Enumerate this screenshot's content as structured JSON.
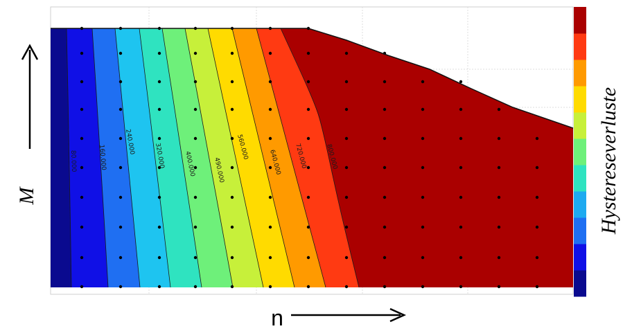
{
  "chart_data": {
    "type": "contour",
    "xlabel": "n",
    "ylabel": "M",
    "colorbar_label": "Hystereseverluste",
    "grid": true,
    "levels": [
      {
        "label": "80.000",
        "value": 80000,
        "color": "#0a0a8f"
      },
      {
        "label": "160.000",
        "value": 160000,
        "color": "#1010e6"
      },
      {
        "label": "240.000",
        "value": 240000,
        "color": "#1f6ff2"
      },
      {
        "label": "320.000",
        "value": 320000,
        "color": "#1ec4f0"
      },
      {
        "label": "400.000",
        "value": 400000,
        "color": "#2fe3c0"
      },
      {
        "label": "490.000",
        "value": 490000,
        "color": "#6ef07a"
      },
      {
        "label": "560.000",
        "value": 560000,
        "color": "#c7f03a"
      },
      {
        "label": "640.000",
        "value": 640000,
        "color": "#ffdb00"
      },
      {
        "label": "720.000",
        "value": 720000,
        "color": "#ff9a00"
      },
      {
        "label": "800.000",
        "value": 800000,
        "color": "#ff3a12"
      }
    ],
    "max_region_color": "#aa0000",
    "colorbar_colors": [
      "#0a0a8f",
      "#1010e6",
      "#1f6ff2",
      "#1eaaf0",
      "#2fe3c0",
      "#6ef07a",
      "#c7f03a",
      "#ffdb00",
      "#ff9a00",
      "#ff3a12",
      "#aa0000"
    ]
  }
}
